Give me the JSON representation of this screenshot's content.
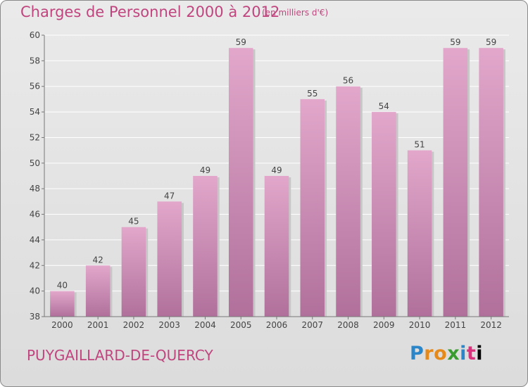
{
  "header": {
    "title": "Charges de Personnel 2000 à 2012",
    "subtitle": "(en milliers d'€)"
  },
  "footer": {
    "place": "PUYGAILLARD-DE-QUERCY",
    "logo": "Proxiti"
  },
  "colors": {
    "bar_top": "#e2a7cb",
    "bar_bottom": "#b0709b",
    "title": "#c0457e"
  },
  "chart_data": {
    "type": "bar",
    "title": "Charges de Personnel 2000 à 2012",
    "subtitle": "(en milliers d'€)",
    "categories": [
      "2000",
      "2001",
      "2002",
      "2003",
      "2004",
      "2005",
      "2006",
      "2007",
      "2008",
      "2009",
      "2010",
      "2011",
      "2012"
    ],
    "values": [
      40,
      42,
      45,
      47,
      49,
      59,
      49,
      55,
      56,
      54,
      51,
      59,
      59
    ],
    "ylim": [
      38,
      60
    ],
    "yticks": [
      38,
      40,
      42,
      44,
      46,
      48,
      50,
      52,
      54,
      56,
      58,
      60
    ],
    "grid": true
  }
}
